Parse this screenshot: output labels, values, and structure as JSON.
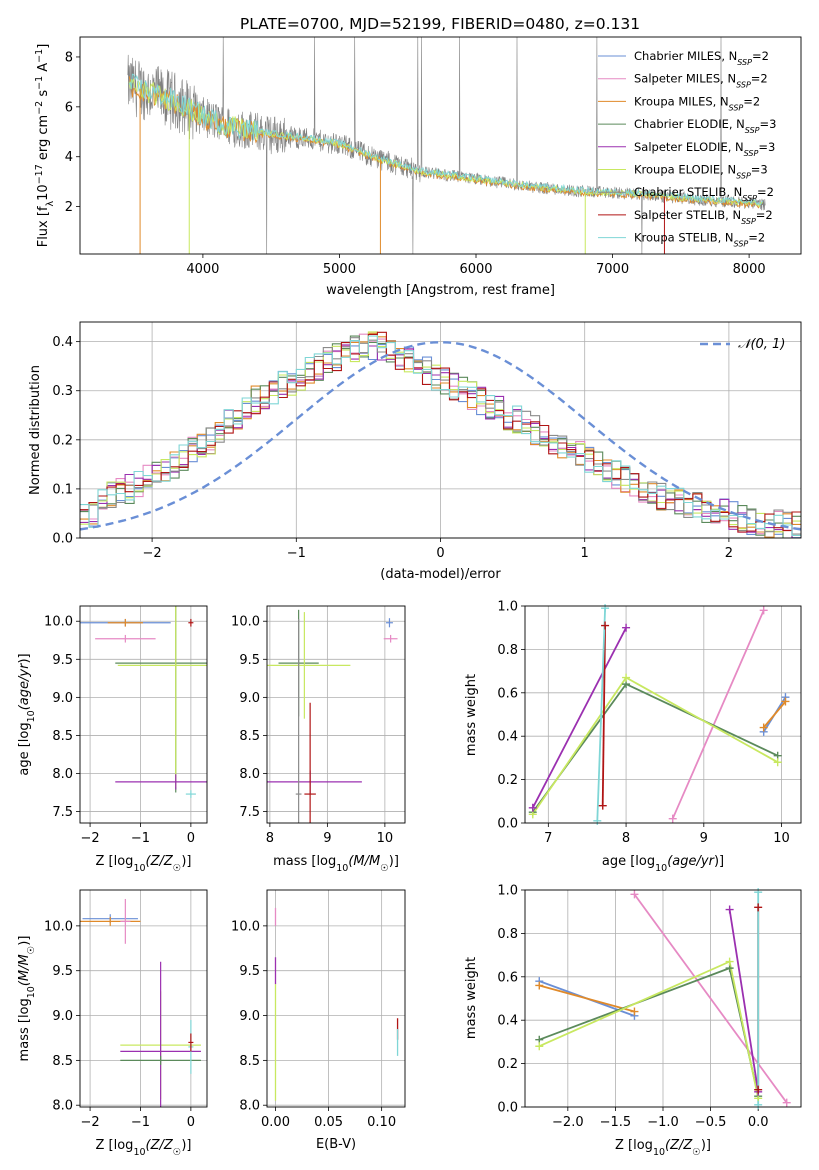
{
  "figure_title": "PLATE=0700, MJD=52199, FIBERID=0480, z=0.131",
  "colors": {
    "Chabrier MILES": "#6a8fd6",
    "Salpeter MILES": "#e68ac4",
    "Kroupa MILES": "#e08a2a",
    "Chabrier ELODIE": "#5b8a5b",
    "Salpeter ELODIE": "#9b30b0",
    "Kroupa ELODIE": "#c8e860",
    "Chabrier STELIB": "#8b8b8b",
    "Salpeter STELIB": "#b01515",
    "Kroupa STELIB": "#7fd6d6",
    "data": "#808080",
    "normal": "#6a8fd6"
  },
  "legend": [
    {
      "model": "Chabrier MILES",
      "nssp": "2"
    },
    {
      "model": "Salpeter MILES",
      "nssp": "2"
    },
    {
      "model": "Kroupa MILES",
      "nssp": "2"
    },
    {
      "model": "Chabrier ELODIE",
      "nssp": "3"
    },
    {
      "model": "Salpeter ELODIE",
      "nssp": "3"
    },
    {
      "model": "Kroupa ELODIE",
      "nssp": "3"
    },
    {
      "model": "Chabrier STELIB",
      "nssp": "2"
    },
    {
      "model": "Salpeter STELIB",
      "nssp": "2"
    },
    {
      "model": "Kroupa STELIB",
      "nssp": "2"
    }
  ],
  "chart_data": [
    {
      "type": "line",
      "panel": "spectrum",
      "xlabel": "wavelength [Angstrom, rest frame]",
      "xlim": [
        3100,
        8380
      ],
      "ylim": [
        0.1,
        8.8
      ],
      "xticks": [
        4000,
        5000,
        6000,
        7000,
        8000
      ],
      "yticks": [
        2,
        4,
        6,
        8
      ],
      "spectrum_wavelength": [
        3450,
        3600,
        3800,
        4000,
        4200,
        4500,
        4800,
        5000,
        5300,
        5600,
        6000,
        6400,
        6800,
        7200,
        7600,
        8100
      ],
      "spectrum_flux": [
        6.9,
        6.6,
        6.2,
        5.6,
        5.2,
        4.9,
        4.7,
        4.5,
        3.9,
        3.4,
        3.1,
        2.8,
        2.6,
        2.5,
        2.3,
        2.1
      ]
    },
    {
      "type": "line",
      "panel": "residuals",
      "xlabel": "(data-model)/error",
      "ylabel": "Normed distribution",
      "xlim": [
        -2.5,
        2.5
      ],
      "ylim": [
        0,
        0.44
      ],
      "xticks": [
        -2,
        -1,
        0,
        1,
        2
      ],
      "yticks": [
        0.0,
        0.1,
        0.2,
        0.3,
        0.4
      ],
      "reference": {
        "name": "𝒩(0, 1)",
        "mean": 0,
        "sigma": 1
      },
      "bin_width": 0.1,
      "x_bins_start": -2.5,
      "envelope": [
        0.04,
        0.05,
        0.07,
        0.09,
        0.1,
        0.1,
        0.11,
        0.12,
        0.13,
        0.14,
        0.15,
        0.16,
        0.18,
        0.19,
        0.2,
        0.22,
        0.24,
        0.25,
        0.26,
        0.28,
        0.29,
        0.3,
        0.31,
        0.32,
        0.33,
        0.34,
        0.35,
        0.36,
        0.37,
        0.38,
        0.385,
        0.39,
        0.39,
        0.39,
        0.38,
        0.37,
        0.36,
        0.35,
        0.34,
        0.33,
        0.32,
        0.31,
        0.3,
        0.29,
        0.28,
        0.27,
        0.26,
        0.25,
        0.24,
        0.23,
        0.22,
        0.21,
        0.2,
        0.19,
        0.18,
        0.17,
        0.16,
        0.15,
        0.14,
        0.13,
        0.12,
        0.11,
        0.1,
        0.09,
        0.085,
        0.08,
        0.075,
        0.07,
        0.065,
        0.06,
        0.055,
        0.05,
        0.045,
        0.04,
        0.035,
        0.03,
        0.03,
        0.03,
        0.025,
        0.025
      ]
    },
    {
      "type": "scatter",
      "panel": "age-vs-Z",
      "xlabel": "Z [log10(Z/Z☉)]",
      "ylabel": "age  [log10(age/yr)]",
      "xlim": [
        -2.2,
        0.32
      ],
      "ylim": [
        7.35,
        10.2
      ],
      "xticks": [
        -2,
        -1,
        0
      ],
      "yticks": [
        7.5,
        8.0,
        8.5,
        9.0,
        9.5,
        10.0
      ],
      "points": [
        {
          "model": "Chabrier MILES",
          "x": -1.3,
          "y": 9.98,
          "xerr": 0.9,
          "yerr": 0.05
        },
        {
          "model": "Kroupa MILES",
          "x": -1.3,
          "y": 9.98,
          "xerr": 0.35,
          "yerr": 0.05
        },
        {
          "model": "Salpeter MILES",
          "x": -1.3,
          "y": 9.77,
          "xerr": 0.6,
          "yerr": 0.05
        },
        {
          "model": "Chabrier ELODIE",
          "x": -0.3,
          "y": 9.45,
          "xerr": 1.2,
          "yerr": 1.7
        },
        {
          "model": "Kroupa ELODIE",
          "x": -0.3,
          "y": 9.42,
          "xerr": 1.15,
          "yerr": 1.6
        },
        {
          "model": "Salpeter ELODIE",
          "x": -0.3,
          "y": 7.89,
          "xerr": 1.2,
          "yerr": 0.1
        },
        {
          "model": "Kroupa STELIB",
          "x": 0.0,
          "y": 7.73,
          "xerr": 0.1,
          "yerr": 0.05
        },
        {
          "model": "Salpeter STELIB",
          "x": 0.0,
          "y": 9.98,
          "xerr": 0.05,
          "yerr": 0.05
        }
      ]
    },
    {
      "type": "scatter",
      "panel": "age-vs-mass",
      "xlabel": "mass [log10(M/M☉)]",
      "xlim": [
        7.95,
        10.35
      ],
      "ylim": [
        7.35,
        10.2
      ],
      "xticks": [
        8,
        9,
        10
      ],
      "yticks": [
        7.5,
        8.0,
        8.5,
        9.0,
        9.5,
        10.0
      ],
      "points": [
        {
          "model": "Chabrier ELODIE",
          "x": 8.5,
          "y": 9.45,
          "xerr": 0.35,
          "yerr": 0.7
        },
        {
          "model": "Kroupa ELODIE",
          "x": 8.6,
          "y": 9.42,
          "xerr": 0.8,
          "yerr": 0.7
        },
        {
          "model": "Salpeter ELODIE",
          "x": 8.7,
          "y": 7.89,
          "xerr": 0.9,
          "yerr": 0.15
        },
        {
          "model": "Chabrier STELIB",
          "x": 8.5,
          "y": 7.73,
          "xerr": 0.05,
          "yerr": 2.3
        },
        {
          "model": "Salpeter STELIB",
          "x": 8.7,
          "y": 7.73,
          "xerr": 0.1,
          "yerr": 1.2
        },
        {
          "model": "Chabrier MILES",
          "x": 10.08,
          "y": 9.98,
          "xerr": 0.06,
          "yerr": 0.06
        },
        {
          "model": "Salpeter MILES",
          "x": 10.1,
          "y": 9.77,
          "xerr": 0.12,
          "yerr": 0.05
        }
      ]
    },
    {
      "type": "line",
      "panel": "mass-weight-vs-age",
      "xlabel": "age  [log10(age/yr)]",
      "ylabel": "mass weight",
      "xlim": [
        6.7,
        10.25
      ],
      "ylim": [
        0,
        1
      ],
      "xticks": [
        7,
        8,
        9,
        10
      ],
      "yticks": [
        0.0,
        0.2,
        0.4,
        0.6,
        0.8,
        1.0
      ],
      "series": [
        {
          "name": "Chabrier MILES",
          "x": [
            9.77,
            10.05
          ],
          "y": [
            0.42,
            0.58
          ]
        },
        {
          "name": "Kroupa MILES",
          "x": [
            9.77,
            10.05
          ],
          "y": [
            0.44,
            0.56
          ]
        },
        {
          "name": "Salpeter MILES",
          "x": [
            8.6,
            9.77
          ],
          "y": [
            0.02,
            0.98
          ]
        },
        {
          "name": "Chabrier ELODIE",
          "x": [
            6.8,
            8.0,
            9.95
          ],
          "y": [
            0.05,
            0.64,
            0.31
          ]
        },
        {
          "name": "Kroupa ELODIE",
          "x": [
            6.8,
            8.0,
            9.95
          ],
          "y": [
            0.04,
            0.67,
            0.28
          ]
        },
        {
          "name": "Salpeter ELODIE",
          "x": [
            6.8,
            8.0
          ],
          "y": [
            0.07,
            0.9
          ]
        },
        {
          "name": "Salpeter STELIB",
          "x": [
            7.7,
            7.73
          ],
          "y": [
            0.08,
            0.91
          ]
        },
        {
          "name": "Kroupa STELIB",
          "x": [
            7.63,
            7.73
          ],
          "y": [
            0.01,
            0.99
          ]
        }
      ]
    },
    {
      "type": "scatter",
      "panel": "mass-vs-Z",
      "xlabel": "Z [log10(Z/Z☉)]",
      "ylabel": "mass [log10(M/M☉)]",
      "xlim": [
        -2.2,
        0.32
      ],
      "ylim": [
        7.98,
        10.4
      ],
      "xticks": [
        -2,
        -1,
        0
      ],
      "yticks": [
        8.0,
        8.5,
        9.0,
        9.5,
        10.0
      ],
      "points": [
        {
          "model": "Chabrier MILES",
          "x": -1.6,
          "y": 10.08,
          "xerr": 0.55,
          "yerr": 0.05
        },
        {
          "model": "Kroupa MILES",
          "x": -1.6,
          "y": 10.05,
          "xerr": 0.6,
          "yerr": 0.05
        },
        {
          "model": "Salpeter MILES",
          "x": -1.3,
          "y": 10.05,
          "xerr": 0.1,
          "yerr": 0.25
        },
        {
          "model": "Kroupa ELODIE",
          "x": -0.6,
          "y": 8.67,
          "xerr": 0.8,
          "yerr": 0.6
        },
        {
          "model": "Salpeter ELODIE",
          "x": -0.6,
          "y": 8.6,
          "xerr": 0.8,
          "yerr": 1.0
        },
        {
          "model": "Chabrier ELODIE",
          "x": -0.6,
          "y": 8.5,
          "xerr": 0.8,
          "yerr": 0.05
        },
        {
          "model": "Kroupa STELIB",
          "x": 0.0,
          "y": 8.65,
          "xerr": 0.05,
          "yerr": 0.3
        },
        {
          "model": "Salpeter STELIB",
          "x": 0.0,
          "y": 8.7,
          "xerr": 0.05,
          "yerr": 0.1
        }
      ]
    },
    {
      "type": "scatter",
      "panel": "mass-vs-EBV",
      "xlabel": "E(B-V)",
      "xlim": [
        -0.008,
        0.122
      ],
      "ylim": [
        7.98,
        10.4
      ],
      "xticks": [
        0.0,
        0.05,
        0.1
      ],
      "yticks": [
        8.0,
        8.5,
        9.0,
        9.5,
        10.0
      ],
      "points": [
        {
          "model": "Salpeter MILES",
          "x": 0.0,
          "y": 10.1,
          "xerr": 0,
          "yerr": 0.1
        },
        {
          "model": "Salpeter ELODIE",
          "x": 0.0,
          "y": 9.5,
          "xerr": 0,
          "yerr": 0.15
        },
        {
          "model": "Kroupa ELODIE",
          "x": 0.0,
          "y": 8.7,
          "xerr": 0,
          "yerr": 0.65
        },
        {
          "model": "Salpeter STELIB",
          "x": 0.115,
          "y": 8.85,
          "xerr": 0,
          "yerr": 0.12
        },
        {
          "model": "Kroupa STELIB",
          "x": 0.115,
          "y": 8.7,
          "xerr": 0,
          "yerr": 0.15
        }
      ]
    },
    {
      "type": "line",
      "panel": "mass-weight-vs-Z",
      "xlabel": "Z [log10(Z/Z☉)]",
      "ylabel": "mass weight",
      "xlim": [
        -2.45,
        0.45
      ],
      "ylim": [
        0,
        1
      ],
      "xticks": [
        -2.0,
        -1.5,
        -1.0,
        -0.5,
        0.0
      ],
      "yticks": [
        0.0,
        0.2,
        0.4,
        0.6,
        0.8,
        1.0
      ],
      "series": [
        {
          "name": "Chabrier MILES",
          "x": [
            -2.3,
            -1.3
          ],
          "y": [
            0.58,
            0.42
          ]
        },
        {
          "name": "Kroupa MILES",
          "x": [
            -2.3,
            -1.3
          ],
          "y": [
            0.56,
            0.44
          ]
        },
        {
          "name": "Salpeter MILES",
          "x": [
            -1.3,
            0.3
          ],
          "y": [
            0.98,
            0.02
          ]
        },
        {
          "name": "Chabrier ELODIE",
          "x": [
            -2.3,
            -0.3,
            0.0
          ],
          "y": [
            0.31,
            0.64,
            0.05
          ]
        },
        {
          "name": "Kroupa ELODIE",
          "x": [
            -2.3,
            -0.3,
            0.0
          ],
          "y": [
            0.28,
            0.67,
            0.04
          ]
        },
        {
          "name": "Salpeter ELODIE",
          "x": [
            -0.3,
            0.0
          ],
          "y": [
            0.91,
            0.07
          ]
        },
        {
          "name": "Salpeter STELIB",
          "x": [
            0.0,
            0.0
          ],
          "y": [
            0.92,
            0.08
          ]
        },
        {
          "name": "Kroupa STELIB",
          "x": [
            0.0,
            0.0
          ],
          "y": [
            0.99,
            0.01
          ]
        }
      ]
    }
  ]
}
